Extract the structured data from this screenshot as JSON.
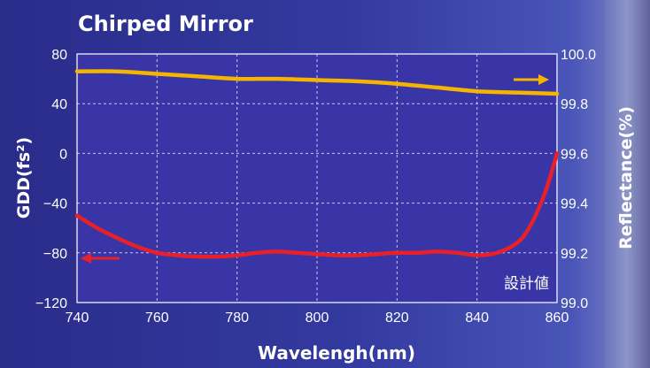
{
  "chart_data": {
    "type": "line",
    "title": "Chirped Mirror",
    "xlabel": "Wavelengh(nm)",
    "ylabel_left": "GDD(fs²)",
    "ylabel_right": "Reflectance(%)",
    "annotation": "設計値",
    "xlim": [
      740,
      860
    ],
    "ylim_left": [
      -120,
      80
    ],
    "ylim_right": [
      99.0,
      100.0
    ],
    "x_ticks": [
      "740",
      "760",
      "780",
      "800",
      "820",
      "840",
      "860"
    ],
    "y_left_ticks": [
      "80",
      "40",
      "0",
      "−40",
      "−80",
      "−120"
    ],
    "y_right_ticks": [
      "100.0",
      "99.8",
      "99.6",
      "99.4",
      "99.2",
      "99.0"
    ],
    "grid": true,
    "series": [
      {
        "axis": "right",
        "color": "#f5b400",
        "x": [
          740,
          750,
          760,
          770,
          780,
          790,
          800,
          810,
          820,
          830,
          840,
          850,
          860
        ],
        "values": [
          99.93,
          99.93,
          99.92,
          99.91,
          99.9,
          99.9,
          99.895,
          99.89,
          99.88,
          99.865,
          99.85,
          99.845,
          99.84
        ]
      },
      {
        "axis": "left",
        "color": "#e8202a",
        "x": [
          740,
          745,
          750,
          755,
          760,
          765,
          770,
          775,
          780,
          785,
          790,
          795,
          800,
          805,
          810,
          815,
          820,
          825,
          830,
          835,
          840,
          845,
          850,
          853,
          856,
          858,
          860
        ],
        "values": [
          -50,
          -60,
          -68,
          -75,
          -80,
          -82,
          -83,
          -83,
          -82,
          -80,
          -79,
          -80,
          -81,
          -82,
          -82,
          -81,
          -80,
          -80,
          -79,
          -80,
          -82,
          -80,
          -72,
          -60,
          -40,
          -22,
          0
        ]
      }
    ]
  },
  "colors": {
    "plot_bg": "#3a35a6",
    "page_bg": "#2b2d8e",
    "grid": "#c8c8e8"
  }
}
